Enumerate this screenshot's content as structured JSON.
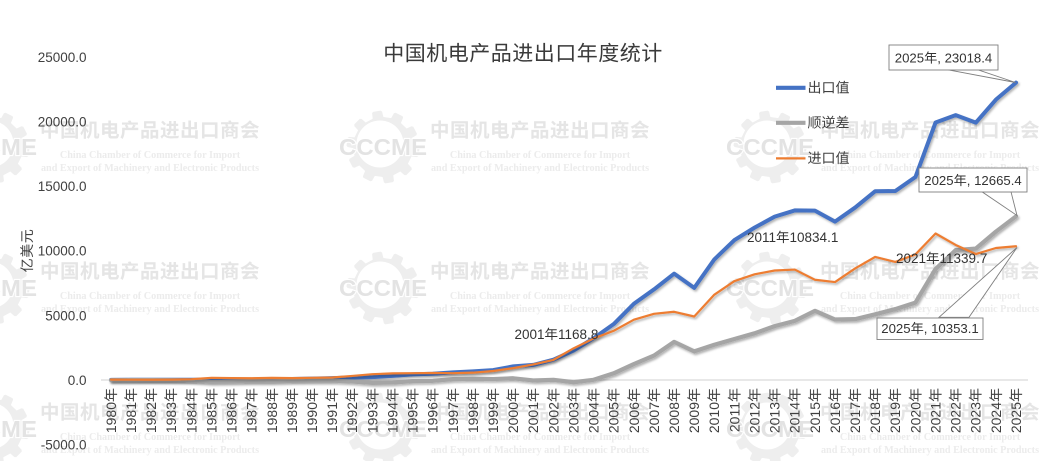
{
  "title": "中国机电产品进出口年度统计",
  "y_axis": {
    "title": "亿美元",
    "ticks": [
      "25000.0",
      "20000.0",
      "15000.0",
      "10000.0",
      "5000.0",
      "0.0",
      "-5000.0"
    ]
  },
  "x_axis": {
    "labels": [
      "1980年",
      "1981年",
      "1982年",
      "1983年",
      "1984年",
      "1985年",
      "1986年",
      "1987年",
      "1988年",
      "1989年",
      "1990年",
      "1991年",
      "1992年",
      "1993年",
      "1994年",
      "1995年",
      "1996年",
      "1997年",
      "1998年",
      "1999年",
      "2000年",
      "2001年",
      "2002年",
      "2003年",
      "2004年",
      "2005年",
      "2006年",
      "2007年",
      "2008年",
      "2009年",
      "2010年",
      "2011年",
      "2012年",
      "2013年",
      "2014年",
      "2015年",
      "2016年",
      "2017年",
      "2018年",
      "2019年",
      "2020年",
      "2021年",
      "2022年",
      "2023年",
      "2024年",
      "2025年"
    ]
  },
  "legend": {
    "items": [
      {
        "label": "出口值",
        "color": "#4472C4"
      },
      {
        "label": "顺逆差",
        "color": "#A5A5A5"
      },
      {
        "label": "进口值",
        "color": "#ED7D31"
      }
    ]
  },
  "chart_data": {
    "type": "line",
    "title": "中国机电产品进出口年度统计",
    "ylabel": "亿美元",
    "ylim": [
      -5000,
      25000
    ],
    "grid": false,
    "legend_position": "top-right",
    "x": [
      1980,
      1981,
      1982,
      1983,
      1984,
      1985,
      1986,
      1987,
      1988,
      1989,
      1990,
      1991,
      1992,
      1993,
      1994,
      1995,
      1996,
      1997,
      1998,
      1999,
      2000,
      2001,
      2002,
      2003,
      2004,
      2005,
      2006,
      2007,
      2008,
      2009,
      2010,
      2011,
      2012,
      2013,
      2014,
      2015,
      2016,
      2017,
      2018,
      2019,
      2020,
      2021,
      2022,
      2023,
      2024,
      2025
    ],
    "series": [
      {
        "name": "出口值",
        "color": "#4472C4",
        "width": 4,
        "values": [
          13.9,
          14.5,
          15.8,
          16.7,
          18.5,
          16.8,
          24.9,
          38.8,
          57.5,
          78.1,
          110.9,
          141.9,
          196.7,
          227.1,
          320.5,
          438.5,
          482.1,
          593.2,
          665.4,
          769.4,
          1053.1,
          1168.8,
          1570.8,
          2274.6,
          3234.3,
          4330.2,
          5903.4,
          7011.7,
          8229.5,
          7131.5,
          9334.3,
          10834.1,
          11794.4,
          12647.3,
          13124.3,
          13110.5,
          12259.7,
          13345.8,
          14611.1,
          14628.0,
          15710.2,
          19930.1,
          20504.8,
          19919.5,
          21700.0,
          23018.4
        ]
      },
      {
        "name": "顺逆差",
        "color": "#A5A5A5",
        "width": 4.2,
        "values": [
          -13.1,
          -10.5,
          -5.7,
          -13.1,
          -42.9,
          -151.8,
          -124.9,
          -94.7,
          -104.9,
          -68.6,
          -57.5,
          -53.1,
          -116.0,
          -222.6,
          -193.9,
          -88.3,
          -64.9,
          65.8,
          97.0,
          74.6,
          133.5,
          -36.3,
          14.3,
          -174.9,
          17.1,
          519.7,
          1233.1,
          1891.0,
          2949.4,
          2216.6,
          2730.9,
          3173.8,
          3613.8,
          4172.1,
          4578.2,
          5353.2,
          4680.8,
          4709.1,
          5082.5,
          5488.3,
          5992.3,
          8590.4,
          10051.2,
          10169.6,
          11483.4,
          12665.4
        ]
      },
      {
        "name": "进口值",
        "color": "#ED7D31",
        "width": 2.2,
        "values": [
          27.0,
          25.0,
          21.5,
          29.8,
          61.4,
          168.6,
          149.8,
          133.5,
          162.4,
          146.7,
          168.4,
          195.0,
          312.7,
          449.7,
          514.4,
          526.8,
          547.0,
          527.4,
          568.4,
          694.8,
          919.6,
          1205.1,
          1556.5,
          2449.5,
          3217.2,
          3810.5,
          4670.3,
          5120.7,
          5280.1,
          4914.9,
          6603.4,
          7660.3,
          8180.6,
          8475.2,
          8546.1,
          7757.3,
          7578.9,
          8636.7,
          9528.6,
          9139.7,
          9717.9,
          11339.7,
          10453.6,
          9749.9,
          10216.6,
          10353.1
        ]
      }
    ]
  },
  "annotations": {
    "label_2001": "2001年1168.8",
    "label_2011": "2011年10834.1",
    "label_2021": "2021年11339.7",
    "callout_export_2025": "2025年, 23018.4",
    "callout_balance_2025": "2025年, 12665.4",
    "callout_import_2025": "2025年, 10353.1"
  },
  "watermark": {
    "cn": "中国机电产品进出口商会",
    "en1": "China Chamber of Commerce for Import",
    "en2": "and Export of Machinery and Electronic Products",
    "logo_text": "CCCME"
  }
}
